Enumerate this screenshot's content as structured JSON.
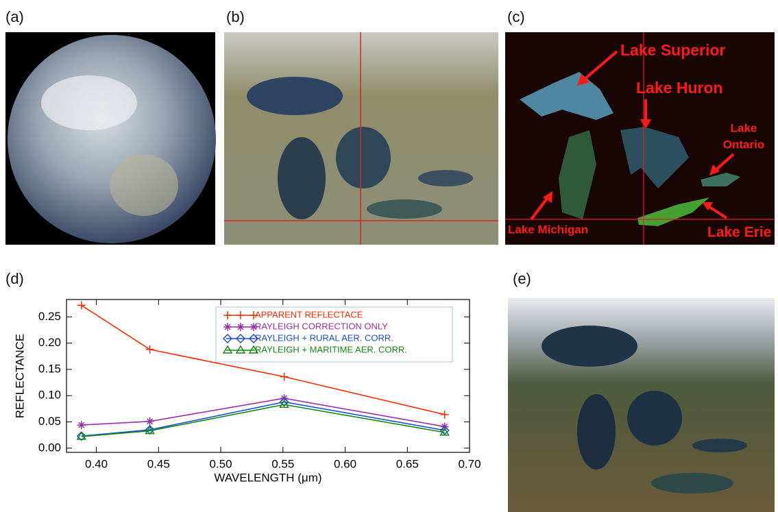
{
  "panels": {
    "a": {
      "label": "(a)"
    },
    "b": {
      "label": "(b)"
    },
    "c": {
      "label": "(c)",
      "lake_superior": "Lake Superior",
      "lake_huron": "Lake Huron",
      "lake_ontario": [
        "Lake",
        "Ontario"
      ],
      "lake_michigan": "Lake Michigan",
      "lake_erie": "Lake Erie"
    },
    "d": {
      "label": "(d)"
    },
    "e": {
      "label": "(e)"
    }
  },
  "chart_data": {
    "type": "line",
    "xlabel": "WAVELENGTH (μm)",
    "ylabel": "REFLECTANCE",
    "x": [
      0.388,
      0.443,
      0.551,
      0.68
    ],
    "series": [
      {
        "name": "APPARENT REFLECTACE",
        "color": "#ff2a00",
        "marker": "plus",
        "values": [
          0.272,
          0.188,
          0.136,
          0.064
        ]
      },
      {
        "name": "RAYLEIGH CORRECTION ONLY",
        "color": "#9a2ea8",
        "marker": "star",
        "values": [
          0.044,
          0.051,
          0.095,
          0.041
        ]
      },
      {
        "name": "RAYLEIGH + RURAL AER. CORR.",
        "color": "#1a4fd6",
        "marker": "diamond",
        "values": [
          0.023,
          0.035,
          0.088,
          0.034
        ]
      },
      {
        "name": "RAYLEIGH + MARITIME AER. CORR.",
        "color": "#118a11",
        "marker": "triangle",
        "values": [
          0.022,
          0.033,
          0.083,
          0.03
        ]
      }
    ],
    "xlim": [
      0.376,
      0.7
    ],
    "ylim": [
      -0.008,
      0.283
    ],
    "xticks": [
      {
        "value": 0.4,
        "label": "0.40"
      },
      0.45,
      {
        "value": 0.5,
        "label": "0.50"
      },
      0.55,
      {
        "value": 0.6,
        "label": "0.60"
      },
      0.65,
      {
        "value": 0.7,
        "label": "0.70"
      }
    ],
    "yticks": [
      {
        "value": 0,
        "label": "0.00"
      },
      0.05,
      {
        "value": 0.1,
        "label": "0.10"
      },
      0.15,
      {
        "value": 0.2,
        "label": "0.20"
      },
      0.25
    ],
    "legend": "upper right"
  }
}
